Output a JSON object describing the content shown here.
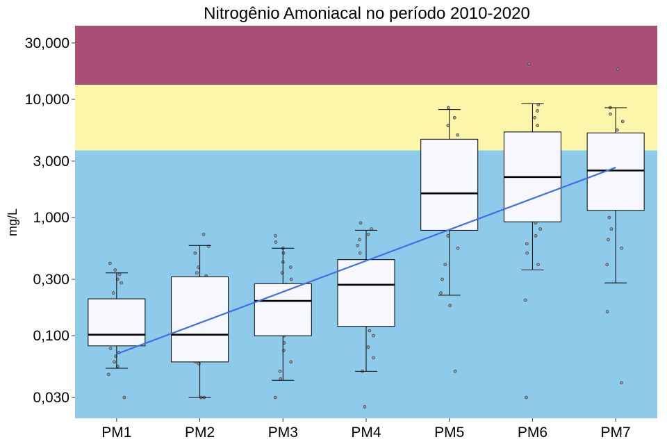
{
  "chart_data": {
    "type": "boxplot",
    "title": "Nitrogênio Amoniacal no período 2010-2020",
    "xlabel": "",
    "ylabel": "mg/L",
    "y_scale": "log10",
    "ylim": [
      0.02,
      42
    ],
    "y_ticks": [
      0.03,
      0.1,
      0.3,
      1,
      3,
      10,
      30
    ],
    "y_tick_labels": [
      "0,030",
      "0,100",
      "0,300",
      "1,000",
      "3,000",
      "10,000",
      "30,000"
    ],
    "categories": [
      "PM1",
      "PM2",
      "PM3",
      "PM4",
      "PM5",
      "PM6",
      "PM7"
    ],
    "bands": [
      {
        "from": 0.02,
        "to": 3.7,
        "color": "#8ecae9"
      },
      {
        "from": 3.7,
        "to": 13.3,
        "color": "#fbf6a9"
      },
      {
        "from": 13.3,
        "to": 42,
        "color": "#a94f76"
      }
    ],
    "boxes": [
      {
        "category": "PM1",
        "whisker_low": 0.053,
        "q1": 0.082,
        "median": 0.102,
        "q3": 0.205,
        "whisker_high": 0.34
      },
      {
        "category": "PM2",
        "whisker_low": 0.03,
        "q1": 0.06,
        "median": 0.102,
        "q3": 0.315,
        "whisker_high": 0.58
      },
      {
        "category": "PM3",
        "whisker_low": 0.042,
        "q1": 0.1,
        "median": 0.197,
        "q3": 0.275,
        "whisker_high": 0.55
      },
      {
        "category": "PM4",
        "whisker_low": 0.05,
        "q1": 0.12,
        "median": 0.27,
        "q3": 0.44,
        "whisker_high": 0.78
      },
      {
        "category": "PM5",
        "whisker_low": 0.22,
        "q1": 0.78,
        "median": 1.6,
        "q3": 4.6,
        "whisker_high": 8.2
      },
      {
        "category": "PM6",
        "whisker_low": 0.36,
        "q1": 0.92,
        "median": 2.2,
        "q3": 5.3,
        "whisker_high": 9.2
      },
      {
        "category": "PM7",
        "whisker_low": 0.28,
        "q1": 1.15,
        "median": 2.5,
        "q3": 5.2,
        "whisker_high": 8.5
      }
    ],
    "points": [
      {
        "category": "PM1",
        "values": [
          0.03,
          0.047,
          0.055,
          0.06,
          0.067,
          0.072,
          0.078,
          0.085,
          0.09,
          0.095,
          0.1,
          0.108,
          0.115,
          0.15,
          0.17,
          0.18,
          0.19,
          0.2,
          0.23,
          0.28,
          0.3,
          0.33,
          0.36,
          0.41
        ]
      },
      {
        "category": "PM2",
        "values": [
          0.03,
          0.03,
          0.058,
          0.06,
          0.072,
          0.08,
          0.095,
          0.1,
          0.12,
          0.135,
          0.16,
          0.2,
          0.25,
          0.32,
          0.34,
          0.38,
          0.5,
          0.57,
          0.72
        ]
      },
      {
        "category": "PM3",
        "values": [
          0.03,
          0.043,
          0.05,
          0.06,
          0.075,
          0.087,
          0.1,
          0.13,
          0.15,
          0.17,
          0.19,
          0.2,
          0.22,
          0.25,
          0.27,
          0.3,
          0.34,
          0.38,
          0.42,
          0.5,
          0.55,
          0.62,
          0.7
        ]
      },
      {
        "category": "PM4",
        "values": [
          0.025,
          0.05,
          0.065,
          0.08,
          0.1,
          0.11,
          0.13,
          0.16,
          0.19,
          0.21,
          0.23,
          0.26,
          0.28,
          0.3,
          0.33,
          0.37,
          0.43,
          0.5,
          0.58,
          0.65,
          0.72,
          0.8,
          0.9
        ]
      },
      {
        "category": "PM5",
        "values": [
          0.05,
          0.18,
          0.23,
          0.3,
          0.4,
          0.55,
          0.7,
          0.8,
          0.9,
          1.0,
          1.1,
          1.2,
          1.4,
          1.6,
          1.8,
          2.0,
          2.2,
          2.5,
          3.0,
          3.5,
          4.0,
          5.0,
          6.0,
          7.0,
          8.5
        ]
      },
      {
        "category": "PM6",
        "values": [
          0.03,
          0.2,
          0.4,
          0.5,
          0.6,
          0.7,
          0.8,
          0.9,
          1.0,
          1.1,
          1.3,
          1.5,
          1.8,
          2.0,
          2.3,
          2.6,
          3.0,
          3.5,
          4.0,
          4.5,
          5.0,
          6.0,
          7.0,
          8.0,
          9.0,
          20.0
        ]
      },
      {
        "category": "PM7",
        "values": [
          0.04,
          0.16,
          0.4,
          0.55,
          0.65,
          0.8,
          1.0,
          1.2,
          1.4,
          1.6,
          1.8,
          2.0,
          2.2,
          2.5,
          2.7,
          3.0,
          3.5,
          4.0,
          4.5,
          5.5,
          6.5,
          7.5,
          8.5,
          18.0
        ]
      }
    ],
    "trend_line": {
      "color": "#3f6fe8",
      "x": [
        1,
        7
      ],
      "y": [
        0.07,
        2.65
      ]
    },
    "grid": false,
    "legend": "none"
  }
}
